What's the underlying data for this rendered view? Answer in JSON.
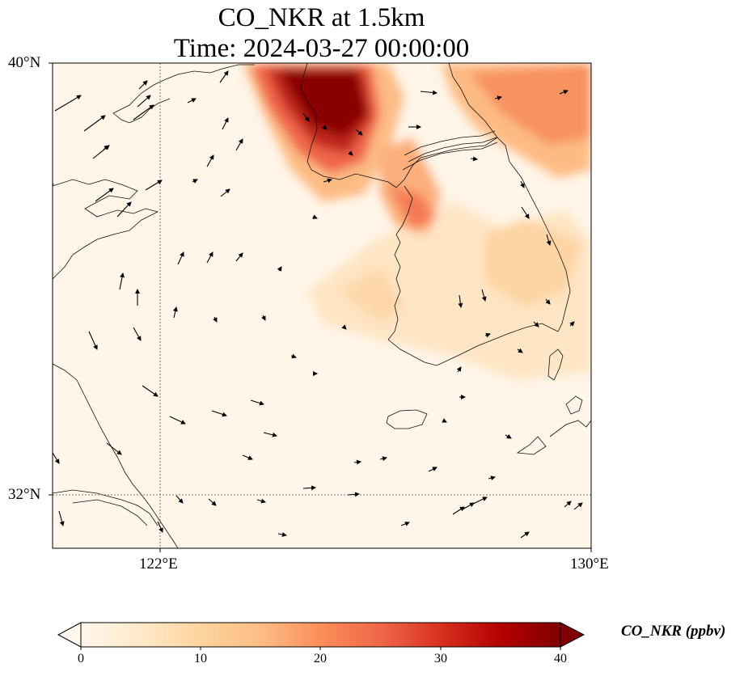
{
  "title": {
    "line1": "CO_NKR at 1.5km",
    "line2": "Time: 2024-03-27 00:00:00"
  },
  "axes": {
    "lat_ticks": [
      "40°N",
      "32°N"
    ],
    "lon_ticks": [
      "122°E",
      "130°E"
    ],
    "lat_range": [
      31,
      40
    ],
    "lon_range": [
      120,
      130
    ],
    "gridlines": "dotted at 122°E and 32°N"
  },
  "colorbar": {
    "label": "CO_NKR (ppbv)",
    "ticks": [
      "0",
      "10",
      "20",
      "30",
      "40"
    ],
    "range": [
      0,
      40
    ],
    "extend": "both",
    "colormap": "OrRd",
    "colors": [
      "#fff7ec",
      "#fee8c8",
      "#fdd49e",
      "#fdbb84",
      "#fc8d59",
      "#ef6548",
      "#d7301f",
      "#b30000",
      "#7f0000"
    ]
  },
  "chart_data": {
    "type": "heatmap",
    "variable": "CO_NKR",
    "units": "ppbv",
    "level": "1.5km",
    "time": "2024-03-27 00:00:00",
    "x_range": [
      120,
      130
    ],
    "y_range": [
      31,
      40
    ],
    "features": [
      "coastlines",
      "wind vectors"
    ]
  }
}
